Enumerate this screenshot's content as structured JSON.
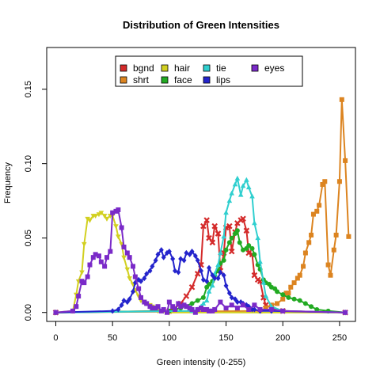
{
  "chart_data": {
    "type": "line",
    "title": "Distribution of Green Intensities",
    "xlabel": "Green intensity (0-255)",
    "ylabel": "Frequency",
    "xlim": [
      -8,
      264
    ],
    "ylim": [
      -0.006,
      0.178
    ],
    "xticks": [
      0,
      50,
      100,
      150,
      200,
      250
    ],
    "xtick_labels": [
      "0",
      "50",
      "100",
      "150",
      "200",
      "250"
    ],
    "yticks": [
      0,
      0.05,
      0.1,
      0.15
    ],
    "ytick_labels": [
      "0.00",
      "0.05",
      "0.10",
      "0.15"
    ],
    "grid": false,
    "legend_placement": "top",
    "series": [
      {
        "name": "bgnd",
        "color": "#d42a2a",
        "marker": "x",
        "x": [
          0,
          100,
          105,
          110,
          115,
          120,
          125,
          128,
          130,
          133,
          135,
          138,
          140,
          143,
          145,
          148,
          150,
          153,
          155,
          158,
          160,
          163,
          165,
          168,
          170,
          173,
          175,
          178,
          180,
          183,
          185,
          190,
          200,
          255
        ],
        "y": [
          0,
          0.001,
          0.003,
          0.006,
          0.011,
          0.017,
          0.026,
          0.032,
          0.058,
          0.062,
          0.05,
          0.047,
          0.058,
          0.053,
          0.028,
          0.04,
          0.057,
          0.058,
          0.041,
          0.054,
          0.06,
          0.062,
          0.063,
          0.055,
          0.04,
          0.039,
          0.025,
          0.022,
          0.021,
          0.01,
          0.005,
          0.003,
          0.001,
          0
        ]
      },
      {
        "name": "shrt",
        "color": "#dc8420",
        "marker": "square",
        "x": [
          0,
          180,
          185,
          190,
          195,
          200,
          203,
          205,
          207,
          210,
          213,
          215,
          218,
          220,
          223,
          225,
          227,
          230,
          232,
          235,
          237,
          240,
          242,
          245,
          247,
          250,
          252,
          255,
          258
        ],
        "y": [
          0,
          0.001,
          0.003,
          0.005,
          0.006,
          0.009,
          0.013,
          0.013,
          0.017,
          0.02,
          0.023,
          0.025,
          0.031,
          0.04,
          0.047,
          0.052,
          0.066,
          0.068,
          0.072,
          0.086,
          0.088,
          0.032,
          0.025,
          0.042,
          0.052,
          0.088,
          0.143,
          0.102,
          0.051
        ]
      },
      {
        "name": "hair",
        "color": "#d2d021",
        "marker": "triangle-down",
        "x": [
          0,
          15,
          18,
          20,
          23,
          25,
          28,
          30,
          33,
          35,
          38,
          40,
          43,
          45,
          48,
          50,
          53,
          55,
          58,
          60,
          63,
          65,
          68,
          70,
          73,
          75,
          78,
          80,
          83,
          85,
          88,
          90,
          95,
          100,
          255
        ],
        "y": [
          0,
          0.001,
          0.012,
          0.021,
          0.027,
          0.046,
          0.063,
          0.062,
          0.065,
          0.065,
          0.066,
          0.067,
          0.065,
          0.063,
          0.065,
          0.065,
          0.058,
          0.051,
          0.046,
          0.037,
          0.029,
          0.023,
          0.019,
          0.015,
          0.011,
          0.008,
          0.007,
          0.006,
          0.005,
          0.004,
          0.002,
          0.001,
          0.001,
          0,
          0
        ]
      },
      {
        "name": "face",
        "color": "#22aa22",
        "marker": "circle",
        "x": [
          0,
          100,
          110,
          120,
          125,
          130,
          133,
          135,
          138,
          140,
          143,
          145,
          148,
          150,
          153,
          155,
          158,
          160,
          162,
          165,
          168,
          170,
          173,
          175,
          178,
          180,
          183,
          185,
          188,
          190,
          193,
          195,
          200,
          205,
          210,
          215,
          220,
          225,
          230,
          240,
          255
        ],
        "y": [
          0,
          0.001,
          0.003,
          0.006,
          0.008,
          0.01,
          0.017,
          0.019,
          0.021,
          0.025,
          0.028,
          0.033,
          0.035,
          0.042,
          0.047,
          0.05,
          0.053,
          0.055,
          0.047,
          0.042,
          0.043,
          0.045,
          0.043,
          0.039,
          0.032,
          0.029,
          0.022,
          0.02,
          0.019,
          0.017,
          0.016,
          0.014,
          0.012,
          0.01,
          0.009,
          0.008,
          0.006,
          0.004,
          0.002,
          0.001,
          0
        ]
      },
      {
        "name": "tie",
        "color": "#30cfcf",
        "marker": "triangle",
        "x": [
          0,
          120,
          125,
          128,
          130,
          133,
          135,
          138,
          140,
          143,
          145,
          148,
          150,
          153,
          155,
          158,
          160,
          163,
          165,
          168,
          170,
          173,
          175,
          178,
          180,
          183,
          185,
          190,
          200,
          255
        ],
        "y": [
          0,
          0.001,
          0.002,
          0.004,
          0.006,
          0.008,
          0.014,
          0.018,
          0.026,
          0.032,
          0.04,
          0.051,
          0.067,
          0.075,
          0.08,
          0.086,
          0.09,
          0.079,
          0.085,
          0.089,
          0.084,
          0.078,
          0.06,
          0.05,
          0.034,
          0.02,
          0.011,
          0.004,
          0.001,
          0
        ]
      },
      {
        "name": "lips",
        "color": "#2424cc",
        "marker": "diamond",
        "x": [
          0,
          50,
          55,
          58,
          60,
          63,
          65,
          68,
          70,
          73,
          75,
          78,
          80,
          83,
          85,
          88,
          90,
          93,
          95,
          98,
          100,
          103,
          105,
          108,
          110,
          113,
          115,
          118,
          120,
          123,
          125,
          128,
          130,
          133,
          135,
          138,
          140,
          143,
          145,
          148,
          150,
          153,
          155,
          158,
          160,
          163,
          165,
          168,
          170,
          173,
          175,
          180,
          190,
          255
        ],
        "y": [
          0,
          0.001,
          0.002,
          0.005,
          0.008,
          0.007,
          0.009,
          0.014,
          0.02,
          0.022,
          0.021,
          0.023,
          0.026,
          0.028,
          0.031,
          0.035,
          0.039,
          0.042,
          0.037,
          0.04,
          0.041,
          0.036,
          0.028,
          0.027,
          0.036,
          0.035,
          0.04,
          0.039,
          0.041,
          0.038,
          0.035,
          0.028,
          0.022,
          0.021,
          0.03,
          0.025,
          0.023,
          0.023,
          0.027,
          0.025,
          0.018,
          0.013,
          0.01,
          0.009,
          0.007,
          0.007,
          0.006,
          0.005,
          0.004,
          0.002,
          0.002,
          0.001,
          0.001,
          0
        ]
      },
      {
        "name": "eyes",
        "color": "#7a2ac8",
        "marker": "square",
        "x": [
          0,
          15,
          18,
          20,
          23,
          25,
          28,
          30,
          33,
          35,
          38,
          40,
          43,
          45,
          48,
          50,
          53,
          55,
          58,
          60,
          63,
          65,
          68,
          70,
          73,
          75,
          78,
          80,
          83,
          85,
          88,
          90,
          93,
          95,
          98,
          100,
          103,
          105,
          108,
          110,
          113,
          115,
          118,
          120,
          123,
          125,
          128,
          130,
          133,
          135,
          138,
          140,
          145,
          150,
          155,
          160,
          165,
          170,
          175,
          180,
          190,
          200,
          255
        ],
        "y": [
          0,
          0.001,
          0.004,
          0.011,
          0.021,
          0.02,
          0.024,
          0.032,
          0.037,
          0.039,
          0.038,
          0.034,
          0.031,
          0.037,
          0.041,
          0.067,
          0.068,
          0.069,
          0.057,
          0.044,
          0.04,
          0.037,
          0.031,
          0.024,
          0.016,
          0.01,
          0.007,
          0.006,
          0.004,
          0.003,
          0.003,
          0.004,
          0.001,
          0.002,
          0.0,
          0.007,
          0.004,
          0.002,
          0.006,
          0.004,
          0.005,
          0.004,
          0.003,
          0.002,
          0.0,
          0.002,
          0.003,
          0.002,
          0.002,
          0.001,
          0.001,
          0.002,
          0.007,
          0.003,
          0.005,
          0.003,
          0.005,
          0.002,
          0.005,
          0.002,
          0.002,
          0.001,
          0
        ]
      }
    ]
  }
}
